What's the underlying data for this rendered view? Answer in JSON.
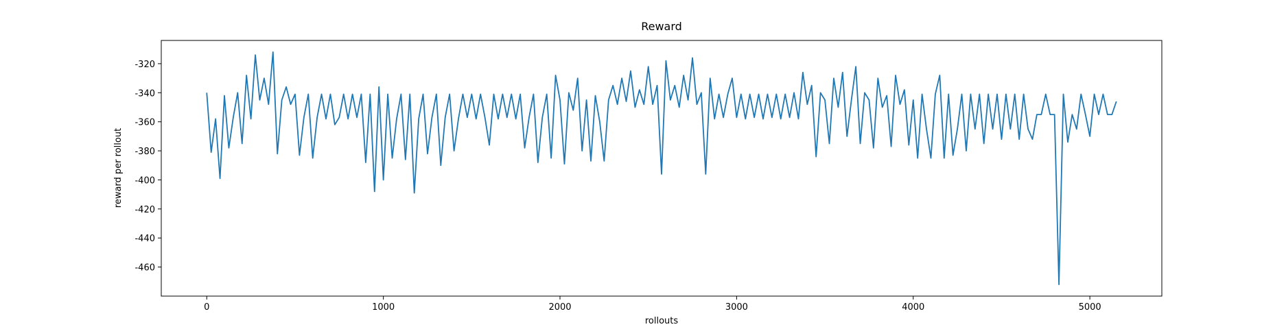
{
  "chart_data": {
    "type": "line",
    "title": "Reward",
    "x_label": "rollouts",
    "y_label": "reward per rollout",
    "xlim": [
      -257.5,
      5407.5
    ],
    "xticks": [
      0,
      1000,
      2000,
      3000,
      4000,
      5000
    ],
    "ylim": [
      -480,
      -304
    ],
    "yticks": [
      -460,
      -440,
      -420,
      -400,
      -380,
      -360,
      -340,
      -320
    ],
    "x": [
      0,
      25,
      50,
      75,
      100,
      125,
      150,
      175,
      200,
      225,
      250,
      275,
      300,
      325,
      350,
      375,
      400,
      425,
      450,
      475,
      500,
      525,
      550,
      575,
      600,
      625,
      650,
      675,
      700,
      725,
      750,
      775,
      800,
      825,
      850,
      875,
      900,
      925,
      950,
      975,
      1000,
      1025,
      1050,
      1075,
      1100,
      1125,
      1150,
      1175,
      1200,
      1225,
      1250,
      1275,
      1300,
      1325,
      1350,
      1375,
      1400,
      1425,
      1450,
      1475,
      1500,
      1525,
      1550,
      1575,
      1600,
      1625,
      1650,
      1675,
      1700,
      1725,
      1750,
      1775,
      1800,
      1825,
      1850,
      1875,
      1900,
      1925,
      1950,
      1975,
      2000,
      2025,
      2050,
      2075,
      2100,
      2125,
      2150,
      2175,
      2200,
      2225,
      2250,
      2275,
      2300,
      2325,
      2350,
      2375,
      2400,
      2425,
      2450,
      2475,
      2500,
      2525,
      2550,
      2575,
      2600,
      2625,
      2650,
      2675,
      2700,
      2725,
      2750,
      2775,
      2800,
      2825,
      2850,
      2875,
      2900,
      2925,
      2950,
      2975,
      3000,
      3025,
      3050,
      3075,
      3100,
      3125,
      3150,
      3175,
      3200,
      3225,
      3250,
      3275,
      3300,
      3325,
      3350,
      3375,
      3400,
      3425,
      3450,
      3475,
      3500,
      3525,
      3550,
      3575,
      3600,
      3625,
      3650,
      3675,
      3700,
      3725,
      3750,
      3775,
      3800,
      3825,
      3850,
      3875,
      3900,
      3925,
      3950,
      3975,
      4000,
      4025,
      4050,
      4075,
      4100,
      4125,
      4150,
      4175,
      4200,
      4225,
      4250,
      4275,
      4300,
      4325,
      4350,
      4375,
      4400,
      4425,
      4450,
      4475,
      4500,
      4525,
      4550,
      4575,
      4600,
      4625,
      4650,
      4675,
      4700,
      4725,
      4750,
      4775,
      4800,
      4825,
      4850,
      4875,
      4900,
      4925,
      4950,
      4975,
      5000,
      5025,
      5050,
      5075,
      5100,
      5125,
      5150
    ],
    "series": [
      {
        "color": "#1f77b4",
        "values": [
          -340,
          -381,
          -358,
          -399,
          -342,
          -378,
          -357,
          -340,
          -375,
          -328,
          -358,
          -314,
          -345,
          -330,
          -348,
          -312,
          -382,
          -345,
          -336,
          -348,
          -341,
          -383,
          -357,
          -341,
          -385,
          -357,
          -341,
          -358,
          -341,
          -362,
          -357,
          -341,
          -358,
          -341,
          -357,
          -341,
          -388,
          -341,
          -408,
          -336,
          -400,
          -341,
          -385,
          -358,
          -341,
          -386,
          -341,
          -409,
          -358,
          -341,
          -382,
          -357,
          -341,
          -390,
          -357,
          -341,
          -380,
          -358,
          -341,
          -357,
          -341,
          -358,
          -341,
          -357,
          -376,
          -341,
          -358,
          -341,
          -357,
          -341,
          -358,
          -341,
          -378,
          -357,
          -341,
          -388,
          -357,
          -341,
          -385,
          -328,
          -345,
          -389,
          -340,
          -352,
          -330,
          -380,
          -345,
          -387,
          -342,
          -360,
          -387,
          -345,
          -335,
          -348,
          -330,
          -346,
          -325,
          -350,
          -338,
          -348,
          -322,
          -348,
          -335,
          -396,
          -318,
          -345,
          -335,
          -350,
          -328,
          -345,
          -316,
          -348,
          -340,
          -396,
          -330,
          -358,
          -341,
          -357,
          -341,
          -330,
          -357,
          -341,
          -358,
          -341,
          -357,
          -341,
          -358,
          -341,
          -357,
          -341,
          -358,
          -341,
          -357,
          -340,
          -358,
          -326,
          -348,
          -335,
          -384,
          -340,
          -345,
          -375,
          -330,
          -350,
          -326,
          -370,
          -345,
          -322,
          -375,
          -340,
          -345,
          -378,
          -330,
          -350,
          -342,
          -377,
          -328,
          -348,
          -338,
          -376,
          -345,
          -385,
          -341,
          -365,
          -385,
          -341,
          -328,
          -385,
          -341,
          -383,
          -365,
          -341,
          -380,
          -341,
          -365,
          -341,
          -375,
          -341,
          -365,
          -341,
          -372,
          -341,
          -365,
          -341,
          -372,
          -341,
          -365,
          -372,
          -355,
          -355,
          -341,
          -355,
          -355,
          -472,
          -341,
          -374,
          -355,
          -365,
          -341,
          -355,
          -370,
          -341,
          -355,
          -341,
          -355,
          -355,
          -346
        ]
      }
    ]
  }
}
